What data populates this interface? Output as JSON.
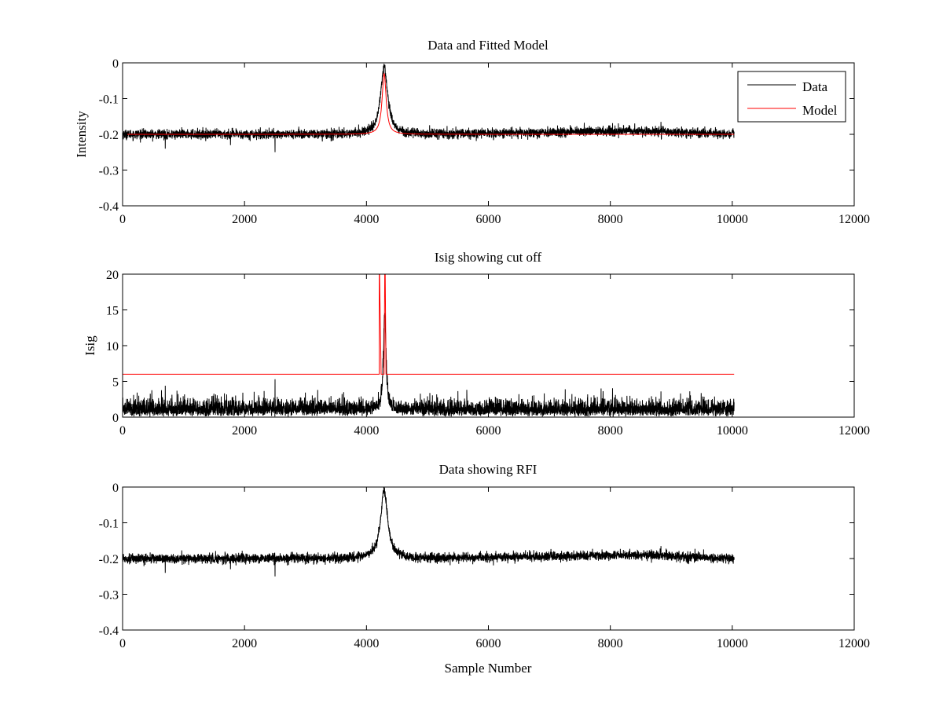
{
  "chart_data": [
    {
      "type": "line",
      "title": "Data and Fitted Model",
      "xlabel": "",
      "ylabel": "Intensity",
      "xlim": [
        0,
        12000
      ],
      "ylim": [
        -0.4,
        0
      ],
      "xticks": [
        0,
        2000,
        4000,
        6000,
        8000,
        10000,
        12000
      ],
      "xtick_labels": [
        "0",
        "2000",
        "4000",
        "6000",
        "8000",
        "10000",
        "12000"
      ],
      "yticks": [
        -0.4,
        -0.3,
        -0.2,
        -0.1,
        0
      ],
      "ytick_labels": [
        "-0.4",
        "-0.3",
        "-0.2",
        "-0.1",
        "0"
      ],
      "grid": false,
      "legend": {
        "position": "top-right",
        "entries": [
          "Data",
          "Model"
        ]
      },
      "series": [
        {
          "name": "Data",
          "color": "#000000",
          "kind": "noise",
          "x_range": [
            0,
            10030
          ],
          "baseline": -0.2,
          "baseline_drift": [
            [
              0,
              -0.2
            ],
            [
              5000,
              -0.2
            ],
            [
              8500,
              -0.19
            ],
            [
              10030,
              -0.2
            ]
          ],
          "noise_amplitude": 0.012,
          "peak": {
            "x": 4290,
            "height": 0.19,
            "width": 70
          },
          "spikes": [
            [
              700,
              -0.24
            ],
            [
              2500,
              -0.25
            ],
            [
              1770,
              -0.23
            ],
            [
              8830,
              -0.165
            ]
          ]
        },
        {
          "name": "Model",
          "color": "#ff0000",
          "kind": "model",
          "x_range": [
            0,
            10030
          ],
          "baseline": -0.2,
          "peak": {
            "x": 4290,
            "height": 0.17,
            "width": 40
          }
        }
      ]
    },
    {
      "type": "line",
      "title": "Isig showing cut off",
      "xlabel": "",
      "ylabel": "Isig",
      "xlim": [
        0,
        12000
      ],
      "ylim": [
        0,
        20
      ],
      "xticks": [
        0,
        2000,
        4000,
        6000,
        8000,
        10000,
        12000
      ],
      "xtick_labels": [
        "0",
        "2000",
        "4000",
        "6000",
        "8000",
        "10000",
        "12000"
      ],
      "yticks": [
        0,
        5,
        10,
        15,
        20
      ],
      "ytick_labels": [
        "0",
        "5",
        "10",
        "15",
        "20"
      ],
      "grid": false,
      "series": [
        {
          "name": "Isig",
          "color": "#000000",
          "kind": "abs-noise",
          "x_range": [
            0,
            10030
          ],
          "baseline": 0.8,
          "noise_amplitude": 1.2,
          "peak": {
            "x": 4300,
            "height": 13.5,
            "width": 25
          },
          "spikes": [
            [
              700,
              4.4
            ],
            [
              2500,
              5.3
            ],
            [
              3200,
              3.8
            ],
            [
              7260,
              3.9
            ],
            [
              8830,
              3.6
            ]
          ]
        },
        {
          "name": "Cut off",
          "color": "#ff0000",
          "kind": "polyline",
          "points": [
            [
              0,
              6
            ],
            [
              4210,
              6
            ],
            [
              4210,
              20
            ],
            [
              4215,
              20
            ],
            [
              4240,
              6
            ],
            [
              4290,
              6
            ],
            [
              4300,
              20
            ],
            [
              4308,
              20
            ],
            [
              4320,
              6
            ],
            [
              10030,
              6
            ]
          ]
        }
      ]
    },
    {
      "type": "line",
      "title": "Data showing RFI",
      "xlabel": "Sample Number",
      "ylabel": "",
      "xlim": [
        0,
        12000
      ],
      "ylim": [
        -0.4,
        0
      ],
      "xticks": [
        0,
        2000,
        4000,
        6000,
        8000,
        10000,
        12000
      ],
      "xtick_labels": [
        "0",
        "2000",
        "4000",
        "6000",
        "8000",
        "10000",
        "12000"
      ],
      "yticks": [
        -0.4,
        -0.3,
        -0.2,
        -0.1,
        0
      ],
      "ytick_labels": [
        "-0.4",
        "-0.3",
        "-0.2",
        "-0.1",
        "0"
      ],
      "grid": false,
      "series": [
        {
          "name": "Data",
          "color": "#000000",
          "kind": "noise",
          "x_range": [
            0,
            10030
          ],
          "baseline": -0.2,
          "baseline_drift": [
            [
              0,
              -0.2
            ],
            [
              5000,
              -0.2
            ],
            [
              8500,
              -0.19
            ],
            [
              10030,
              -0.2
            ]
          ],
          "noise_amplitude": 0.012,
          "peak": {
            "x": 4290,
            "height": 0.19,
            "width": 70
          },
          "spikes": [
            [
              700,
              -0.24
            ],
            [
              2500,
              -0.25
            ],
            [
              1770,
              -0.23
            ],
            [
              8830,
              -0.165
            ]
          ]
        }
      ]
    }
  ]
}
